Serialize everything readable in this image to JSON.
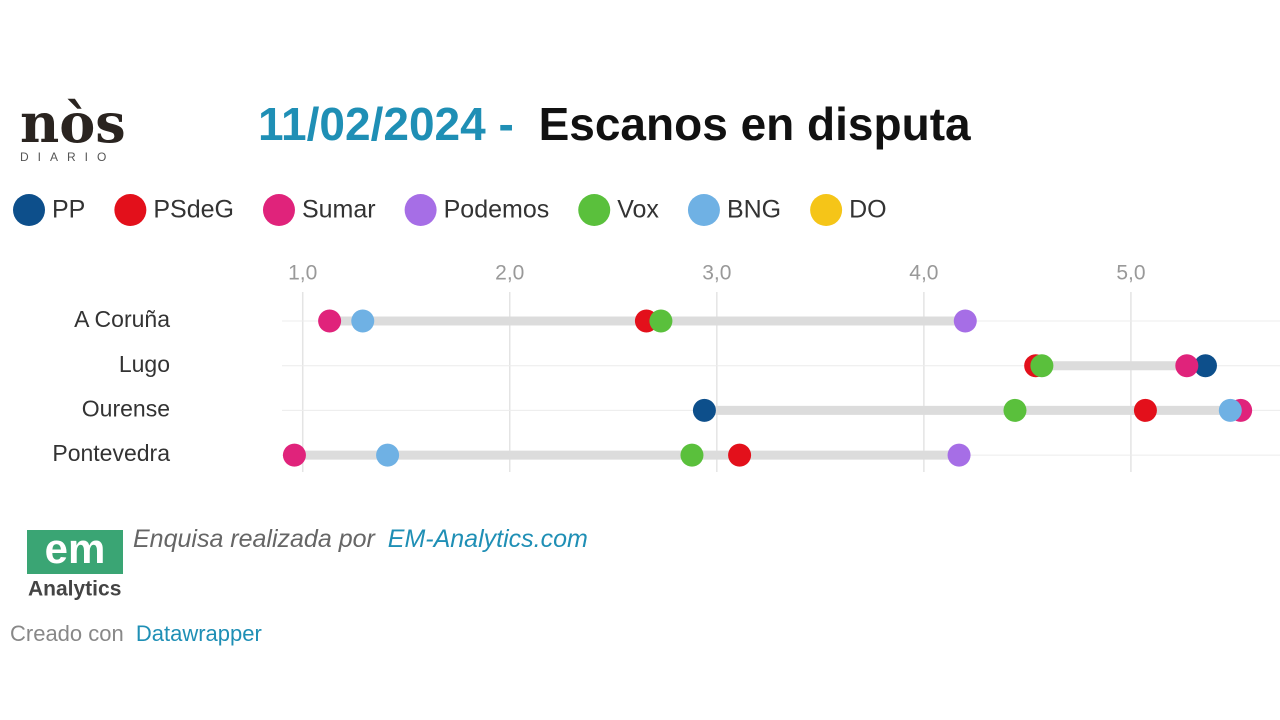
{
  "header": {
    "logo": "nòs",
    "logo_sub": "DIARIO"
  },
  "chart_data": {
    "type": "dot",
    "title_date": "11/02/2024 -",
    "title": "Escanos en disputa",
    "categories": [
      "A Coruña",
      "Lugo",
      "Ourense",
      "Pontevedra"
    ],
    "series": [
      {
        "name": "PP",
        "color": "#0d4f8b",
        "values": [
          null,
          5.36,
          2.94,
          null
        ]
      },
      {
        "name": "PSdeG",
        "color": "#e3101b",
        "values": [
          2.66,
          4.54,
          5.07,
          3.11
        ]
      },
      {
        "name": "Sumar",
        "color": "#e0237b",
        "values": [
          1.13,
          5.27,
          5.53,
          0.96
        ]
      },
      {
        "name": "Podemos",
        "color": "#a66ee6",
        "values": [
          4.2,
          null,
          null,
          4.17
        ]
      },
      {
        "name": "Vox",
        "color": "#5ac03c",
        "values": [
          2.73,
          4.57,
          4.44,
          2.88
        ]
      },
      {
        "name": "BNG",
        "color": "#6fb1e4",
        "values": [
          1.29,
          null,
          5.48,
          1.41
        ]
      },
      {
        "name": "DO",
        "color": "#f5c518",
        "values": [
          null,
          null,
          null,
          null
        ]
      }
    ],
    "xlim": [
      0.9,
      5.72
    ],
    "xticks": [
      {
        "value": 1,
        "label": "1,0"
      },
      {
        "value": 2,
        "label": "2,0"
      },
      {
        "value": 3,
        "label": "3,0"
      },
      {
        "value": 4,
        "label": "4,0"
      },
      {
        "value": 5,
        "label": "5,0"
      }
    ],
    "grid": true
  },
  "footer": {
    "logo_em": "em",
    "logo_analytics": "Analytics",
    "source_text": "Enquisa realizada por",
    "source_link": "EM-Analytics.com",
    "credit_text": "Creado con",
    "credit_link": "Datawrapper"
  }
}
